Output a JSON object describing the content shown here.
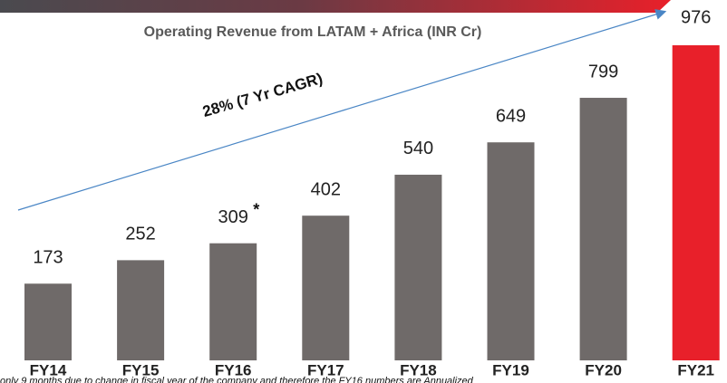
{
  "chart_data": {
    "type": "bar",
    "title": "Operating Revenue from LATAM + Africa (INR Cr)",
    "categories": [
      "FY14",
      "FY15",
      "FY16",
      "FY17",
      "FY18",
      "FY19",
      "FY20",
      "FY21"
    ],
    "values": [
      173,
      252,
      309,
      402,
      540,
      649,
      799,
      976
    ],
    "colors": [
      "#6f6a69",
      "#6f6a69",
      "#6f6a69",
      "#6f6a69",
      "#6f6a69",
      "#6f6a69",
      "#6f6a69",
      "#e8202a"
    ],
    "trend_label": "28% (7 Yr CAGR)",
    "trend_color": "#4a86c5",
    "asterisk": "*",
    "footnote": "only 9 months due to change in fiscal year of the company and therefore the FY16 numbers are Annualized"
  }
}
